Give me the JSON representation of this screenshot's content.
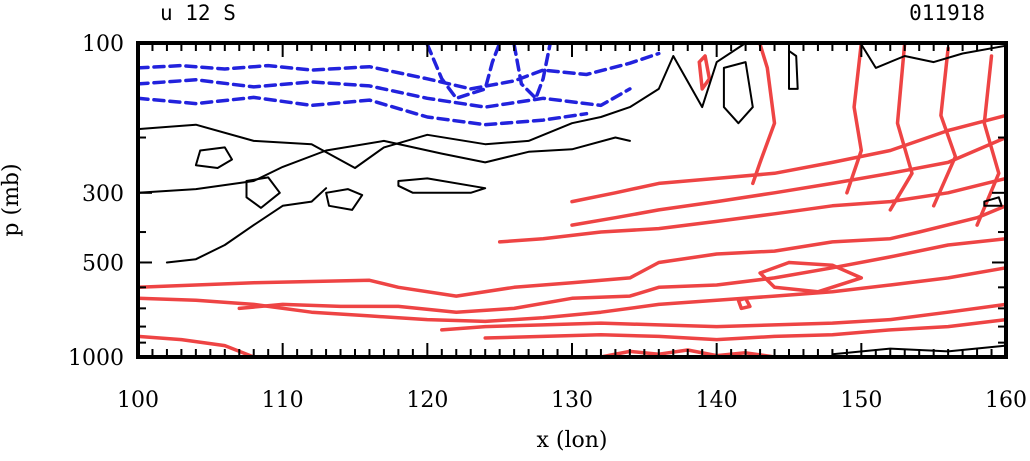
{
  "chart_data": {
    "type": "contour",
    "title_left": "u 12 S",
    "title_right": "011918",
    "xlabel": "x (lon)",
    "ylabel": "p (mb)",
    "xlim": [
      100,
      160
    ],
    "ylim": [
      1000,
      100
    ],
    "x_ticks": [
      "100",
      "110",
      "120",
      "130",
      "140",
      "150",
      "160"
    ],
    "y_ticks": [
      "100",
      "300",
      "500",
      "1000"
    ],
    "y_tick_values": [
      100,
      300,
      500,
      1000
    ],
    "colors": {
      "negative": "#2222dd",
      "zero": "#000000",
      "positive": "#ee4444"
    },
    "contours": {
      "negative": [
        [
          [
            100,
            120
          ],
          [
            103,
            118
          ],
          [
            106,
            121
          ],
          [
            109,
            118
          ],
          [
            112,
            122
          ],
          [
            116,
            119
          ],
          [
            120,
            130
          ],
          [
            123,
            140
          ],
          [
            126,
            132
          ],
          [
            128,
            122
          ],
          [
            131,
            126
          ],
          [
            134,
            116
          ],
          [
            136,
            108
          ]
        ],
        [
          [
            100,
            135
          ],
          [
            104,
            131
          ],
          [
            108,
            138
          ],
          [
            112,
            133
          ],
          [
            116,
            137
          ],
          [
            120,
            150
          ],
          [
            124,
            160
          ],
          [
            128,
            150
          ],
          [
            132,
            158
          ],
          [
            134,
            140
          ]
        ],
        [
          [
            100,
            150
          ],
          [
            104,
            156
          ],
          [
            108,
            149
          ],
          [
            112,
            158
          ],
          [
            116,
            152
          ],
          [
            120,
            172
          ],
          [
            124,
            182
          ],
          [
            128,
            176
          ],
          [
            131,
            168
          ]
        ],
        [
          [
            120,
            101
          ],
          [
            121,
            130
          ],
          [
            122,
            150
          ],
          [
            124,
            140
          ],
          [
            124.5,
            115
          ],
          [
            125,
            100
          ]
        ],
        [
          [
            126,
            101
          ],
          [
            126.5,
            135
          ],
          [
            127.5,
            150
          ],
          [
            128,
            130
          ],
          [
            128.5,
            100
          ]
        ]
      ],
      "zero": [
        [
          [
            100,
            188
          ],
          [
            104,
            182
          ],
          [
            108,
            205
          ],
          [
            112,
            210
          ],
          [
            115,
            250
          ],
          [
            117,
            215
          ],
          [
            120,
            196
          ],
          [
            124,
            210
          ],
          [
            127,
            205
          ],
          [
            130,
            180
          ],
          [
            132,
            172
          ],
          [
            134,
            160
          ],
          [
            136,
            140
          ],
          [
            137,
            110
          ],
          [
            139,
            160
          ],
          [
            140,
            115
          ],
          [
            142,
            100
          ]
        ],
        [
          [
            100,
            300
          ],
          [
            104,
            292
          ],
          [
            108,
            275
          ],
          [
            110,
            248
          ],
          [
            113,
            220
          ],
          [
            117,
            205
          ],
          [
            121,
            225
          ],
          [
            124,
            240
          ],
          [
            127,
            222
          ],
          [
            130,
            218
          ],
          [
            133,
            200
          ],
          [
            134,
            205
          ]
        ],
        [
          [
            102,
            500
          ],
          [
            104,
            488
          ],
          [
            106,
            440
          ],
          [
            108,
            380
          ],
          [
            110,
            330
          ],
          [
            112,
            320
          ],
          [
            113,
            290
          ]
        ],
        [
          [
            104.3,
            220
          ],
          [
            106,
            215
          ],
          [
            106.5,
            235
          ],
          [
            105.5,
            250
          ],
          [
            104,
            245
          ],
          [
            104.3,
            220
          ]
        ],
        [
          [
            107.5,
            275
          ],
          [
            109,
            268
          ],
          [
            109.8,
            300
          ],
          [
            108.5,
            335
          ],
          [
            107.5,
            310
          ],
          [
            107.5,
            275
          ]
        ],
        [
          [
            113,
            300
          ],
          [
            114.5,
            292
          ],
          [
            115.5,
            305
          ],
          [
            114.8,
            340
          ],
          [
            113.2,
            330
          ],
          [
            113,
            300
          ]
        ],
        [
          [
            118,
            275
          ],
          [
            120,
            270
          ],
          [
            124,
            290
          ],
          [
            123,
            300
          ],
          [
            119,
            300
          ],
          [
            118,
            285
          ],
          [
            118,
            275
          ]
        ],
        [
          [
            140.5,
            120
          ],
          [
            142,
            115
          ],
          [
            142.5,
            160
          ],
          [
            141.5,
            180
          ],
          [
            140.5,
            160
          ],
          [
            140.5,
            120
          ]
        ],
        [
          [
            145,
            106
          ],
          [
            145.5,
            110
          ],
          [
            145.6,
            140
          ],
          [
            145,
            140
          ],
          [
            145,
            106
          ]
        ],
        [
          [
            150,
            101
          ],
          [
            151,
            120
          ],
          [
            153,
            110
          ],
          [
            155,
            115
          ],
          [
            157,
            108
          ],
          [
            160,
            102
          ]
        ],
        [
          [
            158.5,
            320
          ],
          [
            159.5,
            310
          ],
          [
            159.7,
            330
          ],
          [
            158.5,
            330
          ],
          [
            158.5,
            320
          ]
        ],
        [
          [
            148,
            980
          ],
          [
            152,
            940
          ],
          [
            156,
            960
          ],
          [
            160,
            920
          ]
        ]
      ],
      "positive": [
        [
          [
            100,
            600
          ],
          [
            104,
            590
          ],
          [
            108,
            580
          ],
          [
            112,
            575
          ],
          [
            116,
            570
          ],
          [
            118,
            600
          ],
          [
            122,
            640
          ],
          [
            126,
            600
          ],
          [
            130,
            580
          ],
          [
            134,
            560
          ],
          [
            136,
            500
          ],
          [
            140,
            470
          ],
          [
            144,
            460
          ],
          [
            148,
            430
          ],
          [
            152,
            420
          ],
          [
            154,
            400
          ],
          [
            158,
            360
          ],
          [
            160,
            330
          ]
        ],
        [
          [
            107,
            700
          ],
          [
            110,
            680
          ],
          [
            114,
            690
          ],
          [
            118,
            690
          ],
          [
            122,
            720
          ],
          [
            126,
            700
          ],
          [
            130,
            650
          ],
          [
            134,
            640
          ],
          [
            136,
            600
          ],
          [
            140,
            590
          ],
          [
            144,
            560
          ],
          [
            148,
            520
          ],
          [
            152,
            480
          ],
          [
            156,
            440
          ],
          [
            160,
            420
          ]
        ],
        [
          [
            100,
            650
          ],
          [
            104,
            660
          ],
          [
            108,
            680
          ],
          [
            112,
            720
          ],
          [
            116,
            740
          ],
          [
            120,
            760
          ],
          [
            124,
            770
          ],
          [
            128,
            750
          ],
          [
            132,
            720
          ],
          [
            136,
            680
          ],
          [
            140,
            660
          ],
          [
            144,
            640
          ],
          [
            148,
            620
          ],
          [
            152,
            590
          ],
          [
            156,
            560
          ],
          [
            160,
            520
          ]
        ],
        [
          [
            130,
            320
          ],
          [
            133,
            300
          ],
          [
            136,
            280
          ],
          [
            140,
            270
          ],
          [
            144,
            260
          ],
          [
            148,
            240
          ],
          [
            152,
            220
          ],
          [
            156,
            190
          ],
          [
            160,
            170
          ]
        ],
        [
          [
            130,
            380
          ],
          [
            133,
            360
          ],
          [
            136,
            340
          ],
          [
            140,
            320
          ],
          [
            144,
            300
          ],
          [
            148,
            280
          ],
          [
            152,
            260
          ],
          [
            156,
            240
          ],
          [
            160,
            200
          ]
        ],
        [
          [
            125,
            430
          ],
          [
            128,
            420
          ],
          [
            132,
            400
          ],
          [
            136,
            390
          ],
          [
            140,
            370
          ],
          [
            144,
            350
          ],
          [
            148,
            330
          ],
          [
            152,
            320
          ],
          [
            156,
            300
          ],
          [
            160,
            270
          ]
        ],
        [
          [
            121,
            820
          ],
          [
            124,
            800
          ],
          [
            128,
            790
          ],
          [
            132,
            780
          ],
          [
            136,
            790
          ],
          [
            140,
            800
          ],
          [
            144,
            790
          ],
          [
            148,
            780
          ],
          [
            152,
            760
          ],
          [
            156,
            720
          ],
          [
            160,
            680
          ]
        ],
        [
          [
            124,
            870
          ],
          [
            128,
            860
          ],
          [
            132,
            850
          ],
          [
            136,
            860
          ],
          [
            140,
            880
          ],
          [
            144,
            860
          ],
          [
            148,
            850
          ],
          [
            152,
            820
          ],
          [
            156,
            800
          ],
          [
            160,
            760
          ]
        ],
        [
          [
            100,
            860
          ],
          [
            103,
            880
          ],
          [
            106,
            920
          ],
          [
            108,
            1000
          ]
        ],
        [
          [
            132,
            1000
          ],
          [
            134,
            960
          ],
          [
            136,
            980
          ],
          [
            138,
            950
          ],
          [
            140,
            990
          ],
          [
            142,
            970
          ],
          [
            144,
            1000
          ]
        ],
        [
          [
            138.8,
            115
          ],
          [
            139.2,
            110
          ],
          [
            139.5,
            130
          ],
          [
            139,
            140
          ],
          [
            138.8,
            115
          ]
        ],
        [
          [
            141.5,
            660
          ],
          [
            142,
            650
          ],
          [
            142.3,
            690
          ],
          [
            141.7,
            700
          ],
          [
            141.5,
            660
          ]
        ],
        [
          [
            143,
            101
          ],
          [
            143.5,
            120
          ],
          [
            144,
            180
          ],
          [
            143,
            240
          ],
          [
            142.5,
            280
          ]
        ],
        [
          [
            150,
            100
          ],
          [
            149.5,
            160
          ],
          [
            150,
            220
          ],
          [
            149,
            300
          ]
        ],
        [
          [
            153,
            100
          ],
          [
            152.5,
            180
          ],
          [
            153.5,
            260
          ],
          [
            152,
            340
          ]
        ],
        [
          [
            156,
            104
          ],
          [
            155.5,
            170
          ],
          [
            156.5,
            230
          ],
          [
            155,
            330
          ]
        ],
        [
          [
            159,
            110
          ],
          [
            158.5,
            180
          ],
          [
            159.5,
            260
          ],
          [
            158,
            380
          ]
        ],
        [
          [
            145,
            500
          ],
          [
            148,
            510
          ],
          [
            150,
            560
          ],
          [
            147,
            620
          ],
          [
            144,
            600
          ],
          [
            143,
            540
          ],
          [
            145,
            500
          ]
        ]
      ]
    }
  }
}
